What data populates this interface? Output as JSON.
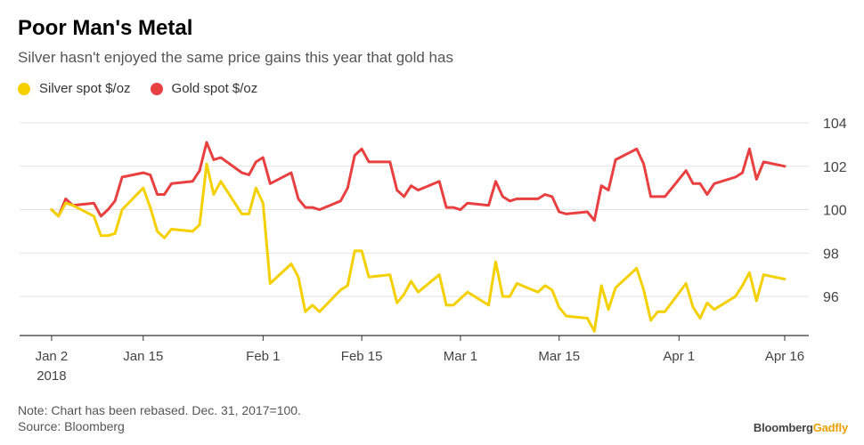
{
  "header": {
    "title": "Poor Man's Metal",
    "subtitle": "Silver hasn't enjoyed the same price gains this year that gold has"
  },
  "legend": [
    {
      "label": "Silver spot $/oz",
      "color": "#f5d000"
    },
    {
      "label": "Gold spot $/oz",
      "color": "#e84040"
    }
  ],
  "footer": {
    "note": "Note: Chart has been rebased. Dec. 31, 2017=100.",
    "source": "Source: Bloomberg",
    "brand_main": "Bloomberg",
    "brand_accent": "Gadfly"
  },
  "chart_data": {
    "type": "line",
    "ylim": [
      94.2,
      104
    ],
    "yticks": [
      96,
      98,
      100,
      102,
      104
    ],
    "xlim": [
      1,
      106
    ],
    "xticks": [
      {
        "day": 2,
        "label": "Jan 2",
        "sublabel": "2018"
      },
      {
        "day": 15,
        "label": "Jan 15"
      },
      {
        "day": 32,
        "label": "Feb 1"
      },
      {
        "day": 46,
        "label": "Feb 15"
      },
      {
        "day": 60,
        "label": "Mar 1"
      },
      {
        "day": 74,
        "label": "Mar 15"
      },
      {
        "day": 91,
        "label": "Apr 1"
      },
      {
        "day": 106,
        "label": "Apr 16"
      }
    ],
    "grid": true,
    "y_axis_side": "right",
    "series": [
      {
        "name": "Silver spot $/oz",
        "color": "#f5d000",
        "x": [
          2,
          3,
          4,
          5,
          8,
          9,
          10,
          11,
          12,
          15,
          16,
          17,
          18,
          19,
          22,
          23,
          24,
          25,
          26,
          29,
          30,
          31,
          32,
          33,
          36,
          37,
          38,
          39,
          40,
          43,
          44,
          45,
          46,
          47,
          50,
          51,
          52,
          53,
          54,
          57,
          58,
          59,
          60,
          61,
          64,
          65,
          66,
          67,
          68,
          71,
          72,
          73,
          74,
          75,
          78,
          79,
          80,
          81,
          82,
          85,
          86,
          87,
          88,
          89,
          92,
          93,
          94,
          95,
          96,
          99,
          100,
          101,
          102,
          103,
          106
        ],
        "y": [
          100.0,
          99.7,
          100.3,
          100.2,
          99.7,
          98.8,
          98.8,
          98.9,
          100.0,
          101.0,
          100.1,
          99.0,
          98.7,
          99.1,
          99.0,
          99.3,
          102.1,
          100.7,
          101.3,
          99.8,
          99.8,
          101.0,
          100.3,
          96.6,
          97.5,
          96.9,
          95.3,
          95.6,
          95.3,
          96.3,
          96.5,
          98.1,
          98.1,
          96.9,
          97.0,
          95.7,
          96.1,
          96.7,
          96.2,
          97.0,
          95.6,
          95.6,
          95.9,
          96.2,
          95.6,
          97.6,
          96.0,
          96.0,
          96.6,
          96.2,
          96.5,
          96.3,
          95.5,
          95.1,
          95.0,
          94.4,
          96.5,
          95.4,
          96.4,
          97.3,
          96.3,
          94.9,
          95.3,
          95.3,
          96.6,
          95.5,
          95.0,
          95.7,
          95.4,
          96.0,
          96.5,
          97.1,
          95.8,
          97.0,
          96.8
        ]
      },
      {
        "name": "Gold spot $/oz",
        "color": "#e84040",
        "x": [
          2,
          3,
          4,
          5,
          8,
          9,
          10,
          11,
          12,
          15,
          16,
          17,
          18,
          19,
          22,
          23,
          24,
          25,
          26,
          29,
          30,
          31,
          32,
          33,
          36,
          37,
          38,
          39,
          40,
          43,
          44,
          45,
          46,
          47,
          50,
          51,
          52,
          53,
          54,
          57,
          58,
          59,
          60,
          61,
          64,
          65,
          66,
          67,
          68,
          71,
          72,
          73,
          74,
          75,
          78,
          79,
          80,
          81,
          82,
          85,
          86,
          87,
          88,
          89,
          92,
          93,
          94,
          95,
          96,
          99,
          100,
          101,
          102,
          103,
          106
        ],
        "y": [
          100.0,
          99.7,
          100.5,
          100.2,
          100.3,
          99.7,
          100.0,
          100.4,
          101.5,
          101.7,
          101.6,
          100.7,
          100.7,
          101.2,
          101.3,
          101.8,
          103.1,
          102.3,
          102.4,
          101.7,
          101.6,
          102.2,
          102.4,
          101.2,
          101.7,
          100.5,
          100.1,
          100.1,
          100.0,
          100.4,
          101.0,
          102.5,
          102.8,
          102.2,
          102.2,
          100.9,
          100.6,
          101.1,
          100.9,
          101.3,
          100.1,
          100.1,
          100.0,
          100.3,
          100.2,
          101.3,
          100.6,
          100.4,
          100.5,
          100.5,
          100.7,
          100.6,
          99.9,
          99.8,
          99.9,
          99.5,
          101.1,
          100.9,
          102.3,
          102.8,
          102.1,
          100.6,
          100.6,
          100.6,
          101.8,
          101.2,
          101.2,
          100.7,
          101.2,
          101.5,
          101.7,
          102.8,
          101.4,
          102.2,
          102.0
        ]
      }
    ]
  }
}
